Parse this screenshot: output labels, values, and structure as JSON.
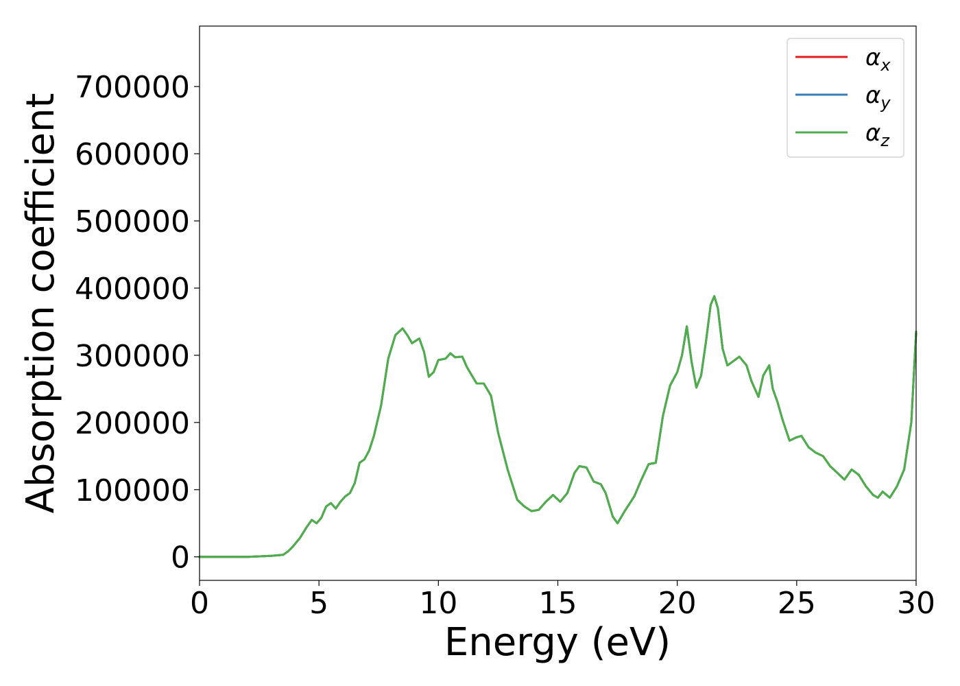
{
  "chart_data": {
    "type": "line",
    "xlabel": "Energy (eV)",
    "ylabel": "Absorption coefficient",
    "xlim": [
      0,
      30
    ],
    "ylim": [
      -35000,
      790000
    ],
    "xticks": [
      "0",
      "5",
      "10",
      "15",
      "20",
      "25",
      "30"
    ],
    "yticks": [
      "0",
      "100000",
      "200000",
      "300000",
      "400000",
      "500000",
      "600000",
      "700000"
    ],
    "grid": false,
    "legend_position": "top-right",
    "series": [
      {
        "name": "α",
        "subscript": "x",
        "color": "#e41a1c",
        "x": [
          0,
          1,
          2,
          3,
          3.5,
          3.7,
          3.9,
          4.2,
          4.5,
          4.7,
          4.9,
          5.1,
          5.3,
          5.5,
          5.7,
          5.9,
          6.1,
          6.3,
          6.5,
          6.7,
          6.9,
          7.1,
          7.3,
          7.6,
          7.9,
          8.2,
          8.5,
          8.7,
          8.9,
          9.2,
          9.4,
          9.6,
          9.8,
          10.0,
          10.3,
          10.5,
          10.7,
          11.0,
          11.2,
          11.6,
          11.9,
          12.2,
          12.5,
          12.9,
          13.3,
          13.6,
          13.9,
          14.2,
          14.5,
          14.8,
          15.1,
          15.4,
          15.7,
          15.9,
          16.2,
          16.5,
          16.8,
          17.0,
          17.3,
          17.5,
          17.8,
          18.2,
          18.5,
          18.8,
          19.1,
          19.4,
          19.7,
          20.0,
          20.2,
          20.4,
          20.6,
          20.8,
          21.0,
          21.2,
          21.4,
          21.55,
          21.7,
          21.9,
          22.1,
          22.3,
          22.6,
          22.9,
          23.1,
          23.4,
          23.6,
          23.85,
          24.0,
          24.2,
          24.4,
          24.7,
          25.0,
          25.2,
          25.5,
          25.8,
          26.1,
          26.4,
          26.7,
          27.0,
          27.3,
          27.6,
          27.9,
          28.2,
          28.4,
          28.6,
          28.9,
          29.2,
          29.5,
          29.8,
          30.0
        ],
        "y": [
          0,
          0,
          0,
          1500,
          3000,
          8000,
          15000,
          28000,
          45000,
          55000,
          50000,
          58000,
          75000,
          80000,
          72000,
          82000,
          90000,
          95000,
          110000,
          140000,
          145000,
          158000,
          180000,
          225000,
          295000,
          330000,
          340000,
          330000,
          318000,
          325000,
          305000,
          268000,
          275000,
          293000,
          295000,
          303000,
          297000,
          298000,
          282000,
          258000,
          258000,
          240000,
          185000,
          130000,
          85000,
          75000,
          68000,
          70000,
          82000,
          92000,
          82000,
          95000,
          125000,
          135000,
          133000,
          112000,
          108000,
          95000,
          60000,
          50000,
          68000,
          90000,
          115000,
          138000,
          140000,
          210000,
          255000,
          275000,
          300000,
          343000,
          290000,
          252000,
          270000,
          320000,
          375000,
          388000,
          370000,
          310000,
          285000,
          290000,
          298000,
          285000,
          262000,
          238000,
          270000,
          285000,
          250000,
          230000,
          205000,
          173000,
          178000,
          180000,
          163000,
          155000,
          150000,
          135000,
          125000,
          115000,
          130000,
          122000,
          105000,
          92000,
          88000,
          97000,
          88000,
          105000,
          130000,
          200000,
          335000
        ]
      },
      {
        "name": "α",
        "subscript": "y",
        "color": "#377eb8",
        "x": [
          0,
          1,
          2,
          3,
          3.5,
          3.7,
          3.9,
          4.2,
          4.5,
          4.7,
          4.9,
          5.1,
          5.3,
          5.5,
          5.7,
          5.9,
          6.1,
          6.3,
          6.5,
          6.7,
          6.9,
          7.1,
          7.3,
          7.6,
          7.9,
          8.2,
          8.5,
          8.7,
          8.9,
          9.2,
          9.4,
          9.6,
          9.8,
          10.0,
          10.3,
          10.5,
          10.7,
          11.0,
          11.2,
          11.6,
          11.9,
          12.2,
          12.5,
          12.9,
          13.3,
          13.6,
          13.9,
          14.2,
          14.5,
          14.8,
          15.1,
          15.4,
          15.7,
          15.9,
          16.2,
          16.5,
          16.8,
          17.0,
          17.3,
          17.5,
          17.8,
          18.2,
          18.5,
          18.8,
          19.1,
          19.4,
          19.7,
          20.0,
          20.2,
          20.4,
          20.6,
          20.8,
          21.0,
          21.2,
          21.4,
          21.55,
          21.7,
          21.9,
          22.1,
          22.3,
          22.6,
          22.9,
          23.1,
          23.4,
          23.6,
          23.85,
          24.0,
          24.2,
          24.4,
          24.7,
          25.0,
          25.2,
          25.5,
          25.8,
          26.1,
          26.4,
          26.7,
          27.0,
          27.3,
          27.6,
          27.9,
          28.2,
          28.4,
          28.6,
          28.9,
          29.2,
          29.5,
          29.8,
          30.0
        ],
        "y": [
          0,
          0,
          0,
          1500,
          3000,
          8000,
          15000,
          28000,
          45000,
          55000,
          50000,
          58000,
          75000,
          80000,
          72000,
          82000,
          90000,
          95000,
          110000,
          140000,
          145000,
          158000,
          180000,
          225000,
          295000,
          330000,
          340000,
          330000,
          318000,
          325000,
          305000,
          268000,
          275000,
          293000,
          295000,
          303000,
          297000,
          298000,
          282000,
          258000,
          258000,
          240000,
          185000,
          130000,
          85000,
          75000,
          68000,
          70000,
          82000,
          92000,
          82000,
          95000,
          125000,
          135000,
          133000,
          112000,
          108000,
          95000,
          60000,
          50000,
          68000,
          90000,
          115000,
          138000,
          140000,
          210000,
          255000,
          275000,
          300000,
          343000,
          290000,
          252000,
          270000,
          320000,
          375000,
          388000,
          370000,
          310000,
          285000,
          290000,
          298000,
          285000,
          262000,
          238000,
          270000,
          285000,
          250000,
          230000,
          205000,
          173000,
          178000,
          180000,
          163000,
          155000,
          150000,
          135000,
          125000,
          115000,
          130000,
          122000,
          105000,
          92000,
          88000,
          97000,
          88000,
          105000,
          130000,
          200000,
          335000
        ]
      },
      {
        "name": "α",
        "subscript": "z",
        "color": "#4daf4a",
        "x": [
          0,
          1,
          2,
          3,
          3.5,
          3.7,
          3.9,
          4.2,
          4.5,
          4.7,
          4.9,
          5.1,
          5.3,
          5.5,
          5.7,
          5.9,
          6.1,
          6.3,
          6.5,
          6.7,
          6.9,
          7.1,
          7.3,
          7.6,
          7.9,
          8.2,
          8.5,
          8.7,
          8.9,
          9.2,
          9.4,
          9.6,
          9.8,
          10.0,
          10.3,
          10.5,
          10.7,
          11.0,
          11.2,
          11.6,
          11.9,
          12.2,
          12.5,
          12.9,
          13.3,
          13.6,
          13.9,
          14.2,
          14.5,
          14.8,
          15.1,
          15.4,
          15.7,
          15.9,
          16.2,
          16.5,
          16.8,
          17.0,
          17.3,
          17.5,
          17.8,
          18.2,
          18.5,
          18.8,
          19.1,
          19.4,
          19.7,
          20.0,
          20.2,
          20.4,
          20.6,
          20.8,
          21.0,
          21.2,
          21.4,
          21.55,
          21.7,
          21.9,
          22.1,
          22.3,
          22.6,
          22.9,
          23.1,
          23.4,
          23.6,
          23.85,
          24.0,
          24.2,
          24.4,
          24.7,
          25.0,
          25.2,
          25.5,
          25.8,
          26.1,
          26.4,
          26.7,
          27.0,
          27.3,
          27.6,
          27.9,
          28.2,
          28.4,
          28.6,
          28.9,
          29.2,
          29.5,
          29.8,
          30.0
        ],
        "y": [
          0,
          0,
          0,
          1500,
          3000,
          8000,
          15000,
          28000,
          45000,
          55000,
          50000,
          58000,
          75000,
          80000,
          72000,
          82000,
          90000,
          95000,
          110000,
          140000,
          145000,
          158000,
          180000,
          225000,
          295000,
          330000,
          340000,
          330000,
          318000,
          325000,
          305000,
          268000,
          275000,
          293000,
          295000,
          303000,
          297000,
          298000,
          282000,
          258000,
          258000,
          240000,
          185000,
          130000,
          85000,
          75000,
          68000,
          70000,
          82000,
          92000,
          82000,
          95000,
          125000,
          135000,
          133000,
          112000,
          108000,
          95000,
          60000,
          50000,
          68000,
          90000,
          115000,
          138000,
          140000,
          210000,
          255000,
          275000,
          300000,
          343000,
          290000,
          252000,
          270000,
          320000,
          375000,
          388000,
          370000,
          310000,
          285000,
          290000,
          298000,
          285000,
          262000,
          238000,
          270000,
          285000,
          250000,
          230000,
          205000,
          173000,
          178000,
          180000,
          163000,
          155000,
          150000,
          135000,
          125000,
          115000,
          130000,
          122000,
          105000,
          92000,
          88000,
          97000,
          88000,
          105000,
          130000,
          200000,
          335000
        ]
      }
    ]
  }
}
